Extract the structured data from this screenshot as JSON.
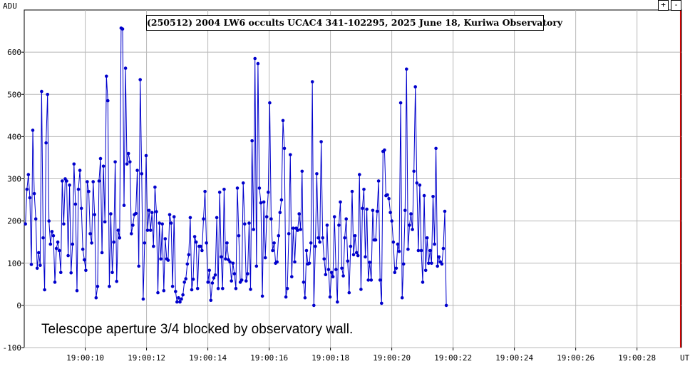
{
  "chart_data": {
    "type": "line",
    "title": "(250512) 2004 LW6 occults  UCAC4 341-102295, 2025 June 18, Kuriwa Observatory",
    "annotation": "Telescope aperture 3/4 blocked by observatory wall.",
    "ylabel": "ADU",
    "xlabel": "UT",
    "ylim": [
      -100,
      700
    ],
    "yticks": [
      -100,
      0,
      100,
      200,
      300,
      400,
      500,
      600
    ],
    "xlim": [
      8.01,
      29.45
    ],
    "xticks": [
      10,
      12,
      14,
      16,
      18,
      20,
      22,
      24,
      26,
      28
    ],
    "xtick_labels": [
      "19:00:10",
      "19:00:12",
      "19:00:14",
      "19:00:16",
      "19:00:18",
      "19:00:20",
      "19:00:22",
      "19:00:24",
      "19:00:26",
      "19:00:28"
    ],
    "grid": true,
    "marker_line_x": 29.42,
    "series": [
      {
        "color": "#0000cc",
        "x_start": 8.05,
        "x_step": 0.048,
        "values": [
          193,
          275,
          310,
          255,
          97,
          415,
          265,
          205,
          88,
          125,
          95,
          507,
          160,
          37,
          385,
          500,
          200,
          145,
          175,
          165,
          55,
          135,
          150,
          130,
          78,
          295,
          193,
          300,
          295,
          118,
          285,
          77,
          145,
          335,
          240,
          35,
          275,
          320,
          230,
          133,
          108,
          83,
          293,
          270,
          170,
          148,
          293,
          215,
          18,
          45,
          295,
          348,
          125,
          330,
          198,
          543,
          485,
          45,
          217,
          78,
          150,
          340,
          57,
          178,
          160,
          657,
          655,
          237,
          562,
          335,
          360,
          340,
          170,
          190,
          215,
          218,
          320,
          93,
          535,
          312,
          15,
          148,
          355,
          178,
          225,
          178,
          220,
          140,
          280,
          222,
          30,
          195,
          110,
          193,
          35,
          158,
          110,
          107,
          215,
          195,
          45,
          210,
          33,
          8,
          18,
          8,
          15,
          25,
          55,
          63,
          98,
          120,
          208,
          37,
          62,
          163,
          150,
          40,
          140,
          140,
          130,
          205,
          270,
          148,
          55,
          83,
          12,
          53,
          65,
          72,
          208,
          40,
          268,
          115,
          40,
          275,
          110,
          148,
          108,
          103,
          58,
          100,
          75,
          40,
          278,
          165,
          55,
          60,
          290,
          193,
          58,
          75,
          195,
          38,
          390,
          180,
          585,
          93,
          573,
          278,
          243,
          22,
          245,
          113,
          210,
          268,
          480,
          205,
          130,
          148,
          100,
          103,
          165,
          220,
          250,
          438,
          372,
          20,
          40,
          170,
          357,
          68,
          183,
          103,
          183,
          178,
          217,
          180,
          318,
          55,
          18,
          130,
          98,
          100,
          148,
          530,
          0,
          140,
          312,
          160,
          150,
          388,
          160,
          110,
          73,
          190,
          85,
          20,
          78,
          68,
          210,
          85,
          8,
          190,
          245,
          88,
          70,
          160,
          205,
          105,
          30,
          140,
          270,
          120,
          165,
          125,
          118,
          310,
          38,
          230,
          275,
          115,
          228,
          60,
          102,
          60,
          225,
          155,
          155,
          223,
          295,
          60,
          5,
          365,
          368,
          260,
          262,
          253,
          220,
          200,
          150,
          78,
          88,
          145,
          128,
          480,
          18,
          98,
          225,
          560,
          133,
          190,
          217,
          180,
          318,
          518,
          290,
          130,
          285,
          130,
          55,
          260,
          83,
          160,
          100,
          130,
          100,
          258,
          145,
          372,
          93,
          115,
          103,
          98,
          135,
          223,
          0
        ]
      }
    ]
  },
  "controls": {
    "zoom_in_label": "+",
    "zoom_out_label": "-"
  }
}
